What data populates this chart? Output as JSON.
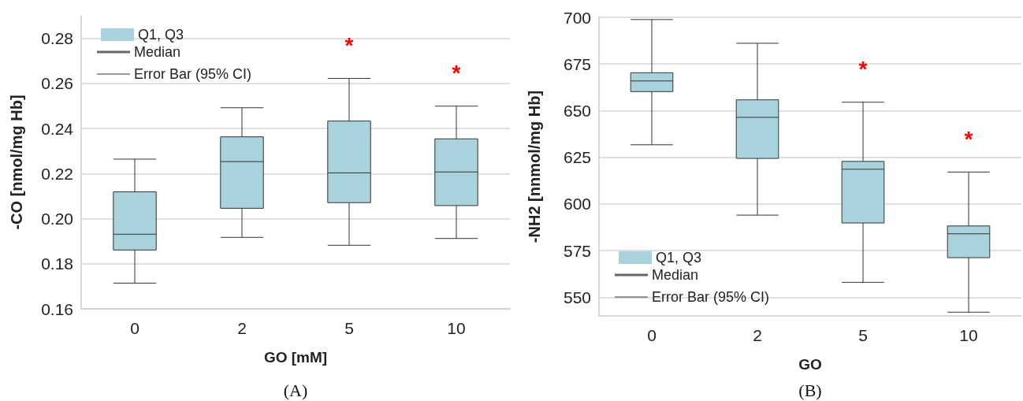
{
  "chart_data": [
    {
      "type": "box",
      "xlabel": "GO [mM]",
      "ylabel": "-CO [nmol/mg Hb]",
      "categories": [
        "0",
        "2",
        "5",
        "10"
      ],
      "series": [
        {
          "name": "Q1, Q3",
          "color": "#a8d3dc",
          "boxes": [
            {
              "low": 0.1714,
              "q1": 0.1861,
              "median": 0.1931,
              "q3": 0.2119,
              "high": 0.2264
            },
            {
              "low": 0.1917,
              "q1": 0.2046,
              "median": 0.2253,
              "q3": 0.2363,
              "high": 0.2492
            },
            {
              "low": 0.1882,
              "q1": 0.2071,
              "median": 0.2203,
              "q3": 0.2433,
              "high": 0.2622
            },
            {
              "low": 0.1912,
              "q1": 0.2058,
              "median": 0.2207,
              "q3": 0.2354,
              "high": 0.2499
            }
          ]
        }
      ],
      "ylim": [
        0.16,
        0.29
      ],
      "yticks": [
        0.16,
        0.18,
        {
          "value": 0.2,
          "label": "0.20"
        },
        0.22,
        0.24,
        0.26,
        0.28
      ],
      "grid": "y",
      "legend": "top left",
      "annotations": [
        "Median",
        "Error Bar (95% CI)",
        "*",
        "*",
        "(A)"
      ]
    },
    {
      "type": "box",
      "xlabel": "GO",
      "ylabel": "-NH2 [nnmol/mg Hb]",
      "categories": [
        "0",
        "2",
        "5",
        "10"
      ],
      "series": [
        {
          "name": "Q1, Q3",
          "color": "#a8d3dc",
          "boxes": [
            {
              "low": 631.7,
              "q1": 660.2,
              "median": 665.9,
              "q3": 670.3,
              "high": 698.8
            },
            {
              "low": 594.0,
              "q1": 624.4,
              "median": 646.4,
              "q3": 655.8,
              "high": 686.1
            },
            {
              "low": 558.0,
              "q1": 589.8,
              "median": 618.6,
              "q3": 622.8,
              "high": 654.5
            },
            {
              "low": 542.0,
              "q1": 571.2,
              "median": 584.0,
              "q3": 588.2,
              "high": 617.1
            }
          ]
        }
      ],
      "ylim": [
        540,
        700
      ],
      "yticks": [
        550,
        575,
        600,
        625,
        650,
        675,
        700
      ],
      "grid": "y",
      "legend": "bottom left",
      "annotations": [
        "Median",
        "Error Bar (95% CI)",
        "*",
        "*",
        "(B)"
      ]
    }
  ]
}
